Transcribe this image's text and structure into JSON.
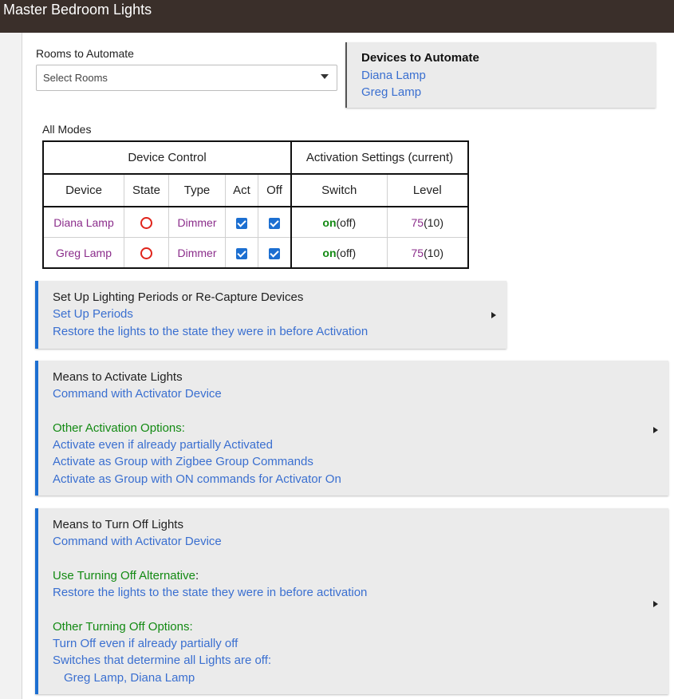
{
  "header": {
    "title": "Master Bedroom Lights"
  },
  "rooms": {
    "label": "Rooms to Automate",
    "placeholder": "Select Rooms"
  },
  "devices": {
    "title": "Devices to Automate",
    "items": [
      "Diana Lamp",
      "Greg Lamp"
    ]
  },
  "modes_label": "All Modes",
  "table": {
    "group_device_control": "Device Control",
    "group_activation": "Activation Settings (current)",
    "columns": [
      "Device",
      "State",
      "Type",
      "Act",
      "Off",
      "Switch",
      "Level"
    ],
    "rows": [
      {
        "device": "Diana Lamp",
        "state": "off",
        "type": "Dimmer",
        "act": true,
        "off": true,
        "switch_on": "on",
        "switch_current": "(off)",
        "level": "75",
        "level_current": "(10)"
      },
      {
        "device": "Greg Lamp",
        "state": "off",
        "type": "Dimmer",
        "act": true,
        "off": true,
        "switch_on": "on",
        "switch_current": "(off)",
        "level": "75",
        "level_current": "(10)"
      }
    ]
  },
  "section_periods": {
    "title": "Set Up Lighting Periods or Re-Capture Devices",
    "link1": "Set Up Periods",
    "link2": "Restore the lights to the state they were in before Activation"
  },
  "section_activate": {
    "title": "Means to Activate Lights",
    "link1": "Command with Activator Device",
    "options_label": "Other Activation Options:",
    "opt1": "Activate even if already partially Activated",
    "opt2": "Activate as Group with Zigbee Group Commands",
    "opt3": "Activate as Group with ON commands for Activator On"
  },
  "section_off": {
    "title": "Means to Turn Off Lights",
    "link1": "Command with Activator Device",
    "alt_label": "Use Turning Off Alternative",
    "alt_colon": ":",
    "alt_value": "Restore the lights to the state they were in before activation",
    "options_label": "Other Turning Off Options:",
    "opt1": "Turn Off even if already partially off",
    "opt2": "Switches that determine all Lights are off:",
    "opt3": "Greg Lamp, Diana Lamp"
  },
  "colors": {
    "header_bg": "#3a2f2a",
    "accent": "#1d6fd1",
    "link": "#3a6fd0",
    "green": "#138a13",
    "device_purple": "#8b2d8b",
    "state_red": "#e0241b"
  },
  "icons": {
    "select_caret": "caret-down-icon",
    "section_expand": "triangle-right-icon",
    "state": "circle-outline-icon",
    "checkbox": "checkbox-checked-icon"
  }
}
